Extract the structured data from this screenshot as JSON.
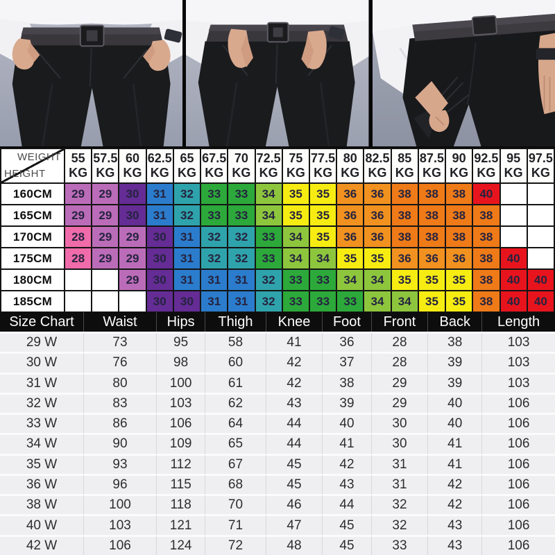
{
  "photos": {
    "panels": [
      {
        "name": "model-front-hands-on-hips"
      },
      {
        "name": "model-front-thumbs-in-pockets"
      },
      {
        "name": "model-back-stretching-fabric"
      }
    ]
  },
  "chart_data": [
    {
      "type": "table",
      "title": "Trouser size by height and weight",
      "corner": {
        "top_right": "WEIGHT",
        "bottom_left": "HEIGHT"
      },
      "weight_unit": "KG",
      "weights": [
        "55",
        "57.5",
        "60",
        "62.5",
        "65",
        "67.5",
        "70",
        "72.5",
        "75",
        "77.5",
        "80",
        "82.5",
        "85",
        "87.5",
        "90",
        "92.5",
        "95",
        "97.5"
      ],
      "heights": [
        "160CM",
        "165CM",
        "170CM",
        "175CM",
        "180CM",
        "185CM"
      ],
      "sizes": [
        [
          "29",
          "29",
          "30",
          "31",
          "32",
          "33",
          "33",
          "34",
          "35",
          "35",
          "36",
          "36",
          "38",
          "38",
          "38",
          "40",
          "",
          ""
        ],
        [
          "29",
          "29",
          "30",
          "31",
          "32",
          "33",
          "33",
          "34",
          "35",
          "35",
          "36",
          "36",
          "38",
          "38",
          "38",
          "38",
          "",
          ""
        ],
        [
          "28",
          "29",
          "29",
          "30",
          "31",
          "32",
          "32",
          "33",
          "34",
          "35",
          "36",
          "36",
          "38",
          "38",
          "38",
          "38",
          "",
          ""
        ],
        [
          "28",
          "29",
          "29",
          "30",
          "31",
          "32",
          "32",
          "33",
          "34",
          "34",
          "35",
          "35",
          "36",
          "36",
          "36",
          "38",
          "40",
          ""
        ],
        [
          "",
          "",
          "29",
          "30",
          "31",
          "31",
          "31",
          "32",
          "33",
          "33",
          "34",
          "34",
          "35",
          "35",
          "35",
          "38",
          "40",
          "40"
        ],
        [
          "",
          "",
          "",
          "30",
          "30",
          "31",
          "31",
          "32",
          "33",
          "33",
          "33",
          "34",
          "34",
          "35",
          "35",
          "38",
          "40",
          "40"
        ]
      ],
      "size_colors": {
        "28": "#f06ba9",
        "29": "#bb6cb8",
        "30": "#642c94",
        "31": "#2b7ccc",
        "32": "#2fa3ab",
        "33": "#2ca93a",
        "34": "#8dc63d",
        "35": "#f6ec12",
        "36": "#f1911f",
        "38": "#ef7a18",
        "40": "#e8141d"
      },
      "empty_color": "#ffffff",
      "text_color": "#25233f"
    },
    {
      "type": "table",
      "title": "Size chart measurements (cm)",
      "columns": [
        "Size Chart",
        "Waist",
        "Hips",
        "Thigh",
        "Knee",
        "Foot",
        "Front",
        "Back",
        "Length"
      ],
      "rows": [
        [
          "29 W",
          "73",
          "95",
          "58",
          "41",
          "36",
          "28",
          "38",
          "103"
        ],
        [
          "30 W",
          "76",
          "98",
          "60",
          "42",
          "37",
          "28",
          "39",
          "103"
        ],
        [
          "31 W",
          "80",
          "100",
          "61",
          "42",
          "38",
          "29",
          "39",
          "103"
        ],
        [
          "32 W",
          "83",
          "103",
          "62",
          "43",
          "39",
          "29",
          "40",
          "106"
        ],
        [
          "33 W",
          "86",
          "106",
          "64",
          "44",
          "40",
          "30",
          "40",
          "106"
        ],
        [
          "34 W",
          "90",
          "109",
          "65",
          "44",
          "41",
          "30",
          "41",
          "106"
        ],
        [
          "35 W",
          "93",
          "112",
          "67",
          "45",
          "42",
          "31",
          "41",
          "106"
        ],
        [
          "36 W",
          "96",
          "115",
          "68",
          "45",
          "43",
          "31",
          "42",
          "106"
        ],
        [
          "38 W",
          "100",
          "118",
          "70",
          "46",
          "44",
          "32",
          "42",
          "106"
        ],
        [
          "40 W",
          "103",
          "121",
          "71",
          "47",
          "45",
          "32",
          "43",
          "106"
        ],
        [
          "42 W",
          "106",
          "124",
          "72",
          "48",
          "45",
          "33",
          "43",
          "106"
        ]
      ],
      "header_bg": "#0d0d0d",
      "header_text_color": "#ffffff",
      "row_bg": "#efeff1"
    }
  ]
}
